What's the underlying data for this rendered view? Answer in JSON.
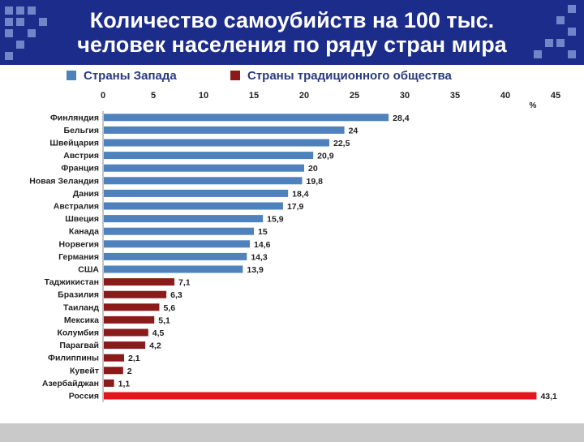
{
  "header": {
    "title_line1": "Количество самоубийств на 100 тыс.",
    "title_line2": "человек населения по ряду стран мира"
  },
  "legend": {
    "west_label": "Страны Запада",
    "traditional_label": "Страны традиционного общества"
  },
  "colors": {
    "header_bg": "#1c2c8a",
    "west": "#4f81bd",
    "traditional": "#8b1a1a",
    "russia": "#e4161b",
    "footer": "#c9c9c9"
  },
  "chart_data": {
    "type": "bar",
    "orientation": "horizontal",
    "title": "Количество самоубийств на 100 тыс. человек населения по ряду стран мира",
    "unit_label": "%",
    "xlim": [
      0,
      45
    ],
    "ticks": [
      0,
      5,
      10,
      15,
      20,
      25,
      30,
      35,
      40,
      45
    ],
    "categories": [
      "Финляндия",
      "Бельгия",
      "Швейцария",
      "Австрия",
      "Франция",
      "Новая Зеландия",
      "Дания",
      "Австралия",
      "Швеция",
      "Канада",
      "Норвегия",
      "Германия",
      "США",
      "Таджикистан",
      "Бразилия",
      "Таиланд",
      "Мексика",
      "Колумбия",
      "Парагвай",
      "Филиппины",
      "Кувейт",
      "Азербайджан",
      "Россия"
    ],
    "values": [
      28.4,
      24,
      22.5,
      20.9,
      20,
      19.8,
      18.4,
      17.9,
      15.9,
      15,
      14.6,
      14.3,
      13.9,
      7.1,
      6.3,
      5.6,
      5.1,
      4.5,
      4.2,
      2.1,
      2,
      1.1,
      43.1
    ],
    "value_labels": [
      "28,4",
      "24",
      "22,5",
      "20,9",
      "20",
      "19,8",
      "18,4",
      "17,9",
      "15,9",
      "15",
      "14,6",
      "14,3",
      "13,9",
      "7,1",
      "6,3",
      "5,6",
      "5,1",
      "4,5",
      "4,2",
      "2,1",
      "2",
      "1,1",
      "43,1"
    ],
    "groups": [
      "west",
      "west",
      "west",
      "west",
      "west",
      "west",
      "west",
      "west",
      "west",
      "west",
      "west",
      "west",
      "west",
      "traditional",
      "traditional",
      "traditional",
      "traditional",
      "traditional",
      "traditional",
      "traditional",
      "traditional",
      "traditional",
      "russia"
    ]
  }
}
